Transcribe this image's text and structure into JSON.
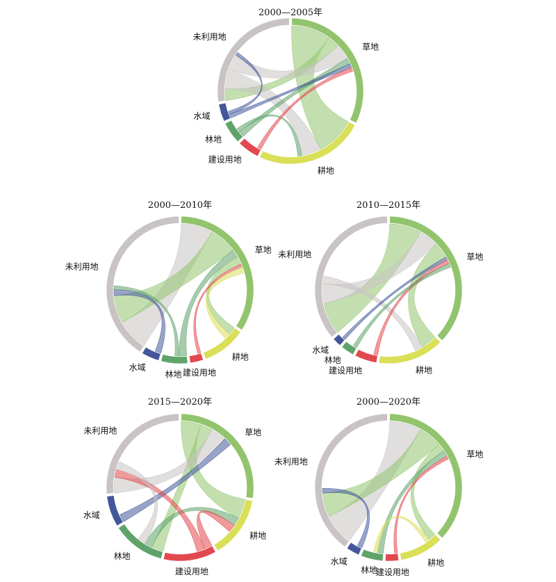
{
  "figure": {
    "colors": {
      "草地": "#92c46e",
      "耕地": "#d9df57",
      "建设用地": "#e2484f",
      "林地": "#5fa36a",
      "水域": "#44579a",
      "未利用地": "#c9c3c3"
    }
  },
  "chart_data": [
    {
      "type": "chord",
      "title": "2000—2005年",
      "segments": [
        {
          "name": "草地",
          "share": 0.33
        },
        {
          "name": "耕地",
          "share": 0.25
        },
        {
          "name": "建设用地",
          "share": 0.05
        },
        {
          "name": "林地",
          "share": 0.05
        },
        {
          "name": "水域",
          "share": 0.04
        },
        {
          "name": "未利用地",
          "share": 0.28
        }
      ],
      "flows": [
        {
          "from": "草地",
          "to": "耕地",
          "value": 0.1
        },
        {
          "from": "草地",
          "to": "未利用地",
          "value": 0.03
        },
        {
          "from": "未利用地",
          "to": "耕地",
          "value": 0.05
        },
        {
          "from": "未利用地",
          "to": "草地",
          "value": 0.04
        },
        {
          "from": "林地",
          "to": "草地",
          "value": 0.015
        },
        {
          "from": "水域",
          "to": "草地",
          "value": 0.01
        },
        {
          "from": "建设用地",
          "to": "草地",
          "value": 0.01
        },
        {
          "from": "水域",
          "to": "未利用地",
          "value": 0.008
        },
        {
          "from": "林地",
          "to": "耕地",
          "value": 0.01
        }
      ]
    },
    {
      "type": "chord",
      "title": "2000—2010年",
      "segments": [
        {
          "name": "草地",
          "share": 0.35
        },
        {
          "name": "耕地",
          "share": 0.1
        },
        {
          "name": "建设用地",
          "share": 0.03
        },
        {
          "name": "林地",
          "share": 0.06
        },
        {
          "name": "水域",
          "share": 0.04
        },
        {
          "name": "未利用地",
          "share": 0.42
        }
      ],
      "flows": [
        {
          "from": "未利用地",
          "to": "草地",
          "value": 0.08
        },
        {
          "from": "草地",
          "to": "未利用地",
          "value": 0.07
        },
        {
          "from": "水域",
          "to": "未利用地",
          "value": 0.015
        },
        {
          "from": "林地",
          "to": "草地",
          "value": 0.02
        },
        {
          "from": "草地",
          "to": "耕地",
          "value": 0.02
        },
        {
          "from": "建设用地",
          "to": "草地",
          "value": 0.008
        },
        {
          "from": "耕地",
          "to": "草地",
          "value": 0.015
        },
        {
          "from": "林地",
          "to": "未利用地",
          "value": 0.01
        }
      ]
    },
    {
      "type": "chord",
      "title": "2010—2015年",
      "segments": [
        {
          "name": "草地",
          "share": 0.38
        },
        {
          "name": "耕地",
          "share": 0.15
        },
        {
          "name": "建设用地",
          "share": 0.05
        },
        {
          "name": "林地",
          "share": 0.03
        },
        {
          "name": "水域",
          "share": 0.02
        },
        {
          "name": "未利用地",
          "share": 0.37
        }
      ],
      "flows": [
        {
          "from": "草地",
          "to": "未利用地",
          "value": 0.08
        },
        {
          "from": "未利用地",
          "to": "草地",
          "value": 0.05
        },
        {
          "from": "草地",
          "to": "耕地",
          "value": 0.04
        },
        {
          "from": "未利用地",
          "to": "耕地",
          "value": 0.02
        },
        {
          "from": "水域",
          "to": "草地",
          "value": 0.008
        },
        {
          "from": "建设用地",
          "to": "草地",
          "value": 0.01
        },
        {
          "from": "林地",
          "to": "草地",
          "value": 0.01
        }
      ]
    },
    {
      "type": "chord",
      "title": "2015—2020年",
      "segments": [
        {
          "name": "草地",
          "share": 0.28
        },
        {
          "name": "耕地",
          "share": 0.14
        },
        {
          "name": "建设用地",
          "share": 0.12
        },
        {
          "name": "林地",
          "share": 0.12
        },
        {
          "name": "水域",
          "share": 0.07
        },
        {
          "name": "未利用地",
          "share": 0.27
        }
      ],
      "flows": [
        {
          "from": "草地",
          "to": "耕地",
          "value": 0.05
        },
        {
          "from": "草地",
          "to": "林地",
          "value": 0.03
        },
        {
          "from": "未利用地",
          "to": "草地",
          "value": 0.04
        },
        {
          "from": "林地",
          "to": "耕地",
          "value": 0.02
        },
        {
          "from": "水域",
          "to": "草地",
          "value": 0.02
        },
        {
          "from": "建设用地",
          "to": "耕地",
          "value": 0.02
        },
        {
          "from": "建设用地",
          "to": "未利用地",
          "value": 0.02
        },
        {
          "from": "未利用地",
          "to": "林地",
          "value": 0.02
        }
      ]
    },
    {
      "type": "chord",
      "title": "2000—2020年",
      "segments": [
        {
          "name": "草地",
          "share": 0.38
        },
        {
          "name": "耕地",
          "share": 0.1
        },
        {
          "name": "建设用地",
          "share": 0.03
        },
        {
          "name": "林地",
          "share": 0.05
        },
        {
          "name": "水域",
          "share": 0.03
        },
        {
          "name": "未利用地",
          "share": 0.41
        }
      ],
      "flows": [
        {
          "from": "未利用地",
          "to": "草地",
          "value": 0.08
        },
        {
          "from": "草地",
          "to": "未利用地",
          "value": 0.06
        },
        {
          "from": "水域",
          "to": "未利用地",
          "value": 0.012
        },
        {
          "from": "草地",
          "to": "耕地",
          "value": 0.02
        },
        {
          "from": "林地",
          "to": "草地",
          "value": 0.015
        },
        {
          "from": "建设用地",
          "to": "草地",
          "value": 0.008
        },
        {
          "from": "耕地",
          "to": "林地",
          "value": 0.01
        }
      ]
    }
  ]
}
